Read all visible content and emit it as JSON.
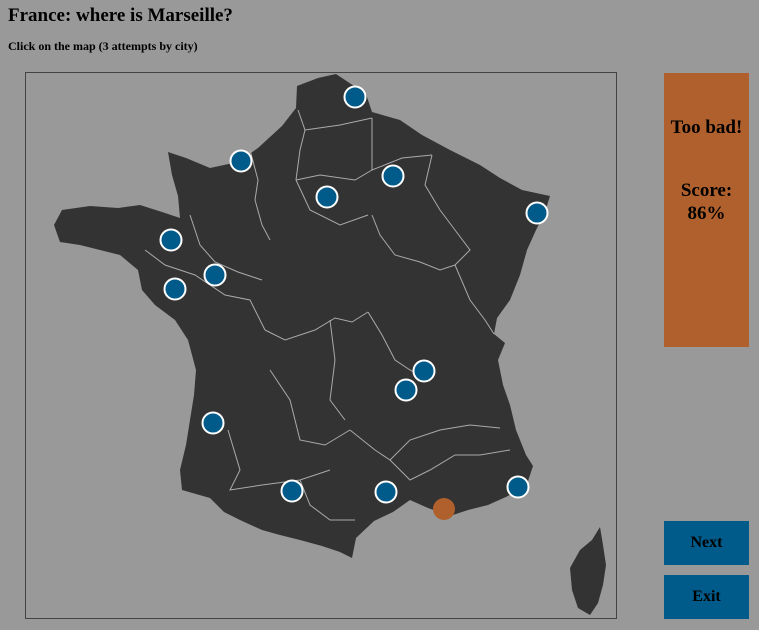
{
  "game": {
    "title": "France: where is Marseille?",
    "instructions": "Click on the map (3 attempts by city)"
  },
  "result": {
    "message": "Too bad!",
    "score_label": "Score:",
    "score_value": "86%"
  },
  "buttons": {
    "next_label": "Next",
    "exit_label": "Exit"
  },
  "colors": {
    "background": "#999999",
    "land": "#333333",
    "borders": "#aaaaaa",
    "city_marker": "#005b8a",
    "target_marker": "#b0602c",
    "panel": "#b0602c",
    "button": "#005b8a"
  },
  "markers": {
    "found_count": 14,
    "target_count": 1
  }
}
